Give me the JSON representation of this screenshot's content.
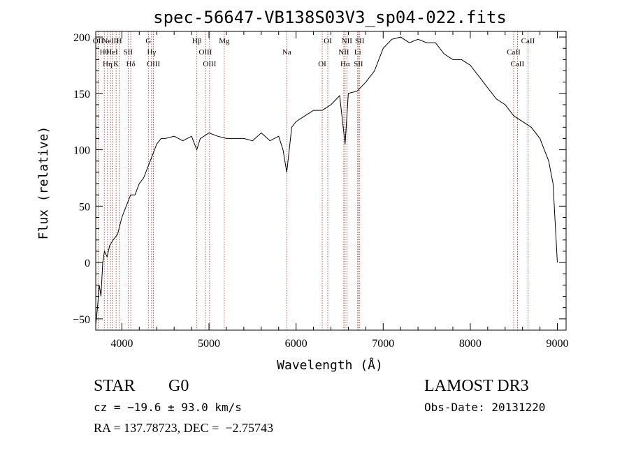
{
  "chart_data": {
    "type": "line",
    "title": "spec-56647-VB138S03V3_sp04-022.fits",
    "xlabel": "Wavelength (Å)",
    "ylabel": "Flux (relative)",
    "xlim": [
      3700,
      9100
    ],
    "ylim": [
      -60,
      205
    ],
    "xticks": [
      4000,
      5000,
      6000,
      7000,
      8000,
      9000
    ],
    "yticks": [
      -50,
      0,
      50,
      100,
      150,
      200
    ],
    "grid": false,
    "line_color": "#000000",
    "marker_color": "#b22222",
    "series": [
      {
        "x": [
          3700,
          3720,
          3740,
          3760,
          3780,
          3800,
          3830,
          3860,
          3900,
          3950,
          4000,
          4050,
          4100,
          4150,
          4200,
          4250,
          4300,
          4350,
          4400,
          4450,
          4500,
          4600,
          4700,
          4800,
          4860,
          4900,
          5000,
          5100,
          5200,
          5300,
          5400,
          5500,
          5600,
          5700,
          5800,
          5850,
          5893,
          5950,
          6000,
          6100,
          6200,
          6300,
          6400,
          6500,
          6563,
          6600,
          6700,
          6800,
          6900,
          7000,
          7100,
          7200,
          7300,
          7400,
          7500,
          7600,
          7700,
          7800,
          7900,
          8000,
          8100,
          8200,
          8300,
          8400,
          8500,
          8600,
          8700,
          8800,
          8850,
          8900,
          8950,
          9000
        ],
        "y": [
          -55,
          -40,
          -20,
          -30,
          0,
          10,
          5,
          15,
          20,
          25,
          40,
          50,
          60,
          60,
          70,
          75,
          85,
          95,
          105,
          110,
          110,
          112,
          108,
          112,
          100,
          110,
          115,
          112,
          110,
          110,
          110,
          108,
          115,
          108,
          112,
          100,
          80,
          120,
          125,
          130,
          135,
          135,
          140,
          148,
          105,
          150,
          152,
          160,
          170,
          190,
          198,
          200,
          195,
          198,
          195,
          195,
          185,
          180,
          180,
          175,
          165,
          155,
          145,
          140,
          130,
          125,
          120,
          110,
          100,
          90,
          70,
          0
        ]
      }
    ],
    "line_markers": [
      {
        "x": 3727,
        "labels": [
          "OII"
        ]
      },
      {
        "x": 3798,
        "labels": [
          "Hθ"
        ]
      },
      {
        "x": 3835,
        "labels": [
          "Hη"
        ]
      },
      {
        "x": 3869,
        "labels": [
          "NeIII"
        ]
      },
      {
        "x": 3889,
        "labels": [
          "HeI"
        ]
      },
      {
        "x": 3934,
        "labels": [
          "K"
        ]
      },
      {
        "x": 3970,
        "labels": [
          "H"
        ]
      },
      {
        "x": 4072,
        "labels": [
          "SII"
        ]
      },
      {
        "x": 4102,
        "labels": [
          "Hδ"
        ]
      },
      {
        "x": 4304,
        "labels": [
          "G"
        ]
      },
      {
        "x": 4341,
        "labels": [
          "Hγ"
        ]
      },
      {
        "x": 4363,
        "labels": [
          "OIII"
        ]
      },
      {
        "x": 4861,
        "labels": [
          "Hβ"
        ]
      },
      {
        "x": 4959,
        "labels": [
          "OIII"
        ]
      },
      {
        "x": 5007,
        "labels": [
          "OIII"
        ]
      },
      {
        "x": 5175,
        "labels": [
          "Mg"
        ]
      },
      {
        "x": 5893,
        "labels": [
          "Na"
        ]
      },
      {
        "x": 6300,
        "labels": [
          "OI"
        ]
      },
      {
        "x": 6364,
        "labels": [
          "OI"
        ]
      },
      {
        "x": 6548,
        "labels": [
          "NII"
        ]
      },
      {
        "x": 6563,
        "labels": [
          "Hα"
        ]
      },
      {
        "x": 6583,
        "labels": [
          "NII"
        ]
      },
      {
        "x": 6707,
        "labels": [
          "Li"
        ]
      },
      {
        "x": 6716,
        "labels": [
          "SII"
        ]
      },
      {
        "x": 6731,
        "labels": [
          "SII"
        ]
      },
      {
        "x": 8498,
        "labels": [
          "CaII"
        ]
      },
      {
        "x": 8542,
        "labels": [
          "CaII"
        ]
      },
      {
        "x": 8662,
        "labels": [
          "CaII"
        ]
      }
    ]
  },
  "info": {
    "class": "STAR",
    "subclass": "G0",
    "survey": "LAMOST DR3",
    "cz": "cz = −19.6 ± 93.0 km/s",
    "obs_date": "Obs-Date: 20131220",
    "coords": "RA = 137.78723, DEC =  −2.75743"
  }
}
